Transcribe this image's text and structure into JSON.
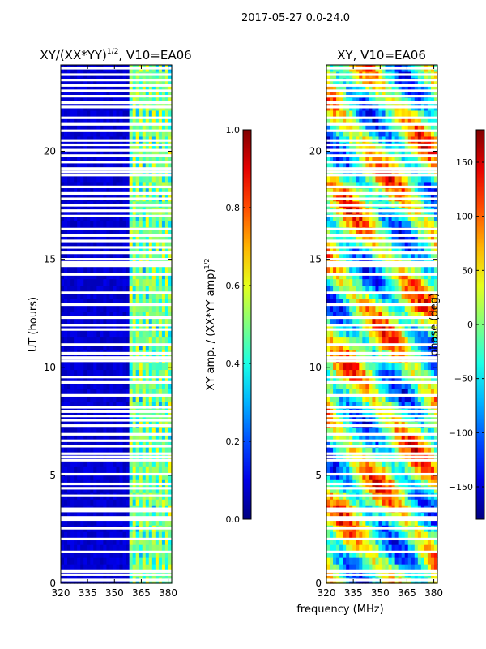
{
  "suptitle": "2017-05-27 0.0-24.0",
  "shared_xlabel": "frequency (MHz)",
  "colors": {
    "blank_row": "#ffffff",
    "axis": "#000000"
  },
  "chart_data": [
    {
      "type": "heatmap",
      "title_main": "XY/(XX*YY)",
      "title_sup": "1/2",
      "title_tail": ", V10=EA06",
      "ylabel": "UT (hours)",
      "xlim": [
        320,
        382
      ],
      "ylim": [
        0,
        24
      ],
      "xticks": [
        320,
        335,
        350,
        365,
        380
      ],
      "yticks": [
        0,
        5,
        10,
        15,
        20
      ],
      "colormap": "jet",
      "colorbar": {
        "label_main": "XY amp. / (XX*YY amp)",
        "label_sup": "1/2",
        "range": [
          0.0,
          1.0
        ],
        "ticks": [
          "0.0",
          "0.2",
          "0.4",
          "0.6",
          "0.8",
          "1.0"
        ]
      },
      "notes": "Mostly low amplitude (~0.05) below 360 MHz; elevated amplitude (0.3-0.5) in band 360-382 MHz; horizontal flagged gaps."
    },
    {
      "type": "heatmap",
      "title_main": "XY, V10=EA06",
      "ylabel": "",
      "xlim": [
        320,
        382
      ],
      "ylim": [
        0,
        24
      ],
      "xticks": [
        320,
        335,
        350,
        365,
        380
      ],
      "yticks": [
        0,
        5,
        10,
        15,
        20
      ],
      "colormap": "jet",
      "colorbar": {
        "label_main": "phase (deg)",
        "range": [
          -180,
          180
        ],
        "ticks": [
          "−150",
          "−100",
          "−50",
          "0",
          "50",
          "100",
          "150"
        ]
      },
      "notes": "Phase varies across full ±180° range with wavy structures; horizontal flagged gaps."
    }
  ],
  "flagged_rows_hours": [
    0.15,
    0.4,
    0.55,
    1.45,
    2.05,
    2.55,
    2.95,
    3.05,
    3.35,
    3.45,
    4.05,
    4.4,
    4.6,
    5.05,
    5.7,
    5.85,
    6.0,
    6.35,
    6.6,
    6.9,
    7.3,
    7.55,
    7.75,
    7.95,
    8.15,
    8.7,
    9.3,
    9.55,
    10.3,
    10.45,
    10.65,
    11.05,
    11.75,
    11.95,
    12.3,
    12.9,
    13.45,
    14.3,
    14.7,
    14.85,
    15.0,
    15.3,
    15.55,
    15.85,
    16.1,
    16.4,
    17.0,
    17.25,
    17.5,
    17.8,
    18.05,
    18.35,
    18.9,
    19.05,
    19.2,
    19.5,
    19.8,
    20.05,
    20.3,
    20.5,
    20.95,
    21.25,
    21.55,
    22.05,
    22.25,
    22.55,
    22.8,
    23.05,
    23.3,
    23.55,
    23.85
  ]
}
